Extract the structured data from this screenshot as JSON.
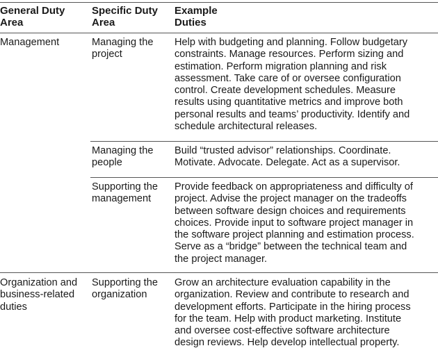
{
  "table": {
    "header": {
      "col1": [
        "General Duty",
        "Area"
      ],
      "col2": [
        "Specific Duty",
        "Area"
      ],
      "col3": [
        "Example",
        "Duties"
      ]
    },
    "rows": [
      {
        "general": [
          "Management"
        ],
        "specific": [
          "Managing the",
          "project"
        ],
        "duties": [
          "Help with budgeting and planning. Follow budgetary",
          "constraints. Manage resources. Perform sizing and",
          "estimation. Perform migration planning and risk",
          "assessment. Take care of or oversee configuration",
          "control. Create development schedules. Measure",
          "results using quantitative metrics and improve both",
          "personal results and teams’ productivity. Identify and",
          "schedule architectural releases."
        ]
      },
      {
        "general": [],
        "specific": [
          "Managing the",
          "people"
        ],
        "duties": [
          "Build “trusted advisor” relationships. Coordinate.",
          "Motivate. Advocate. Delegate. Act as a supervisor."
        ]
      },
      {
        "general": [],
        "specific": [
          "Supporting the",
          "management"
        ],
        "duties": [
          "Provide feedback on appropriateness and difficulty of",
          "project. Advise the project manager on the tradeoffs",
          "between software design choices and requirements",
          "choices. Provide input to software project manager in",
          "the software project planning and estimation process.",
          "Serve as a “bridge” between the technical team and",
          "the project manager."
        ]
      },
      {
        "general": [
          "Organization and",
          "business-related",
          "duties"
        ],
        "specific": [
          "Supporting the",
          "organization"
        ],
        "duties": [
          "Grow an architecture evaluation capability in the",
          "organization. Review and contribute to research and",
          "development efforts. Participate in the hiring process",
          "for the team. Help with product marketing. Institute",
          "and oversee cost-effective software architecture",
          "design reviews. Help develop intellectual property."
        ]
      }
    ]
  }
}
